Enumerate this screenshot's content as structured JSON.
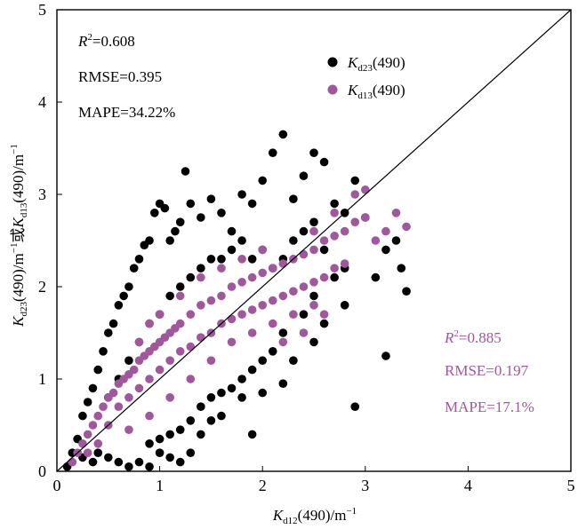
{
  "chart_data": {
    "type": "scatter",
    "title": "",
    "xlabel": "K_d12(490)/m^-1",
    "ylabel": "K_d23(490)/m^-1 或 K_d13(490)/m^-1",
    "xlim": [
      0,
      5
    ],
    "ylim": [
      0,
      5
    ],
    "x_ticks": [
      "0",
      "1",
      "2",
      "3",
      "4",
      "5"
    ],
    "y_ticks": [
      "0",
      "1",
      "2",
      "3",
      "4",
      "5"
    ],
    "grid": false,
    "one_to_one_line": true,
    "legend_position": "top-center",
    "series": [
      {
        "name": "K_d23(490)",
        "color": "#000000",
        "stats": {
          "r2": "R2=0.608",
          "rmse": "RMSE=0.395",
          "mape": "MAPE=34.22%"
        },
        "points": [
          [
            0.1,
            0.05
          ],
          [
            0.15,
            0.2
          ],
          [
            0.2,
            0.35
          ],
          [
            0.25,
            0.6
          ],
          [
            0.3,
            0.75
          ],
          [
            0.35,
            0.9
          ],
          [
            0.4,
            1.1
          ],
          [
            0.45,
            1.3
          ],
          [
            0.5,
            1.5
          ],
          [
            0.55,
            1.6
          ],
          [
            0.6,
            1.8
          ],
          [
            0.65,
            1.9
          ],
          [
            0.7,
            2.0
          ],
          [
            0.75,
            2.2
          ],
          [
            0.8,
            2.3
          ],
          [
            0.85,
            2.45
          ],
          [
            0.9,
            2.5
          ],
          [
            0.95,
            2.8
          ],
          [
            1.0,
            2.9
          ],
          [
            1.05,
            2.85
          ],
          [
            1.1,
            2.5
          ],
          [
            1.15,
            2.6
          ],
          [
            1.2,
            2.7
          ],
          [
            1.25,
            3.25
          ],
          [
            1.3,
            2.9
          ],
          [
            1.4,
            2.75
          ],
          [
            1.5,
            2.95
          ],
          [
            1.6,
            2.8
          ],
          [
            1.7,
            2.6
          ],
          [
            1.8,
            3.0
          ],
          [
            1.9,
            2.9
          ],
          [
            2.0,
            3.15
          ],
          [
            2.1,
            3.45
          ],
          [
            2.2,
            3.65
          ],
          [
            2.3,
            2.95
          ],
          [
            2.4,
            3.2
          ],
          [
            2.5,
            3.45
          ],
          [
            2.6,
            3.35
          ],
          [
            2.7,
            2.9
          ],
          [
            2.8,
            2.8
          ],
          [
            2.9,
            3.15
          ],
          [
            3.0,
            2.75
          ],
          [
            3.1,
            2.1
          ],
          [
            3.2,
            2.4
          ],
          [
            3.3,
            2.5
          ],
          [
            3.4,
            1.95
          ],
          [
            3.35,
            2.2
          ],
          [
            3.2,
            1.25
          ],
          [
            2.9,
            0.7
          ],
          [
            2.8,
            1.8
          ],
          [
            2.6,
            1.6
          ],
          [
            2.5,
            1.4
          ],
          [
            2.3,
            1.2
          ],
          [
            2.2,
            0.95
          ],
          [
            2.0,
            0.85
          ],
          [
            1.9,
            0.4
          ],
          [
            1.8,
            0.8
          ],
          [
            1.6,
            0.6
          ],
          [
            1.5,
            0.55
          ],
          [
            1.4,
            0.4
          ],
          [
            1.3,
            0.2
          ],
          [
            1.2,
            0.1
          ],
          [
            1.1,
            0.15
          ],
          [
            1.0,
            0.2
          ],
          [
            0.9,
            0.05
          ],
          [
            0.8,
            0.1
          ],
          [
            0.7,
            0.05
          ],
          [
            0.6,
            0.1
          ],
          [
            0.5,
            0.15
          ],
          [
            0.4,
            0.2
          ],
          [
            0.35,
            0.1
          ],
          [
            0.25,
            0.15
          ],
          [
            0.5,
            0.8
          ],
          [
            0.6,
            1.0
          ],
          [
            0.7,
            1.2
          ],
          [
            0.8,
            1.4
          ],
          [
            0.9,
            1.6
          ],
          [
            1.0,
            1.7
          ],
          [
            1.1,
            1.9
          ],
          [
            1.2,
            2.0
          ],
          [
            1.3,
            2.1
          ],
          [
            1.4,
            2.2
          ],
          [
            1.5,
            2.3
          ],
          [
            1.6,
            2.3
          ],
          [
            1.7,
            2.4
          ],
          [
            1.8,
            2.5
          ],
          [
            1.9,
            2.3
          ],
          [
            2.0,
            2.4
          ],
          [
            2.1,
            2.2
          ],
          [
            2.2,
            2.3
          ],
          [
            2.3,
            2.5
          ],
          [
            2.4,
            2.6
          ],
          [
            2.5,
            2.7
          ],
          [
            2.6,
            2.4
          ],
          [
            2.7,
            2.1
          ],
          [
            2.8,
            2.2
          ],
          [
            2.5,
            1.9
          ],
          [
            2.4,
            1.7
          ],
          [
            2.2,
            1.5
          ],
          [
            2.1,
            1.3
          ],
          [
            2.0,
            1.2
          ],
          [
            1.9,
            1.1
          ],
          [
            1.8,
            1.0
          ],
          [
            1.7,
            0.9
          ],
          [
            1.6,
            0.85
          ],
          [
            1.5,
            0.8
          ],
          [
            1.4,
            0.7
          ],
          [
            1.3,
            0.55
          ],
          [
            1.2,
            0.45
          ],
          [
            1.1,
            0.4
          ],
          [
            1.0,
            0.35
          ],
          [
            0.9,
            0.3
          ]
        ]
      },
      {
        "name": "K_d13(490)",
        "color": "#a0579c",
        "stats": {
          "r2": "R2=0.885",
          "rmse": "RMSE=0.197",
          "mape": "MAPE=17.1%"
        },
        "points": [
          [
            0.15,
            0.1
          ],
          [
            0.2,
            0.2
          ],
          [
            0.25,
            0.3
          ],
          [
            0.3,
            0.4
          ],
          [
            0.35,
            0.5
          ],
          [
            0.4,
            0.6
          ],
          [
            0.45,
            0.7
          ],
          [
            0.5,
            0.8
          ],
          [
            0.55,
            0.85
          ],
          [
            0.6,
            0.95
          ],
          [
            0.65,
            1.0
          ],
          [
            0.7,
            1.05
          ],
          [
            0.75,
            1.1
          ],
          [
            0.8,
            1.2
          ],
          [
            0.85,
            1.25
          ],
          [
            0.9,
            1.3
          ],
          [
            0.95,
            1.35
          ],
          [
            1.0,
            1.4
          ],
          [
            1.05,
            1.45
          ],
          [
            1.1,
            1.5
          ],
          [
            1.15,
            1.55
          ],
          [
            1.2,
            1.6
          ],
          [
            1.3,
            1.7
          ],
          [
            1.4,
            1.8
          ],
          [
            1.5,
            1.85
          ],
          [
            1.6,
            1.9
          ],
          [
            1.7,
            2.0
          ],
          [
            1.8,
            2.05
          ],
          [
            1.9,
            2.1
          ],
          [
            2.0,
            2.15
          ],
          [
            2.1,
            2.2
          ],
          [
            2.2,
            2.25
          ],
          [
            2.3,
            2.3
          ],
          [
            2.4,
            2.35
          ],
          [
            2.5,
            2.4
          ],
          [
            2.6,
            2.5
          ],
          [
            2.7,
            2.55
          ],
          [
            2.8,
            2.6
          ],
          [
            2.9,
            2.7
          ],
          [
            3.0,
            2.75
          ],
          [
            3.1,
            2.5
          ],
          [
            3.2,
            2.6
          ],
          [
            3.3,
            2.8
          ],
          [
            3.4,
            2.65
          ],
          [
            2.9,
            3.0
          ],
          [
            3.0,
            3.05
          ],
          [
            2.7,
            2.8
          ],
          [
            2.5,
            2.6
          ],
          [
            0.5,
            0.5
          ],
          [
            0.6,
            0.7
          ],
          [
            0.7,
            0.8
          ],
          [
            0.8,
            0.9
          ],
          [
            0.9,
            1.0
          ],
          [
            1.0,
            1.1
          ],
          [
            1.1,
            1.2
          ],
          [
            1.2,
            1.3
          ],
          [
            1.3,
            1.35
          ],
          [
            1.4,
            1.45
          ],
          [
            1.5,
            1.5
          ],
          [
            1.6,
            1.6
          ],
          [
            1.7,
            1.65
          ],
          [
            1.8,
            1.7
          ],
          [
            1.9,
            1.75
          ],
          [
            2.0,
            1.8
          ],
          [
            2.1,
            1.85
          ],
          [
            2.2,
            1.9
          ],
          [
            2.3,
            1.95
          ],
          [
            2.4,
            2.0
          ],
          [
            2.5,
            2.05
          ],
          [
            2.6,
            2.1
          ],
          [
            2.7,
            2.2
          ],
          [
            2.8,
            2.25
          ],
          [
            1.2,
            1.9
          ],
          [
            1.4,
            2.1
          ],
          [
            1.6,
            2.2
          ],
          [
            1.8,
            2.3
          ],
          [
            2.0,
            2.4
          ],
          [
            0.9,
            1.6
          ],
          [
            1.0,
            1.7
          ],
          [
            0.8,
            1.4
          ],
          [
            1.5,
            1.2
          ],
          [
            1.7,
            1.4
          ],
          [
            1.9,
            1.5
          ],
          [
            2.1,
            1.6
          ],
          [
            2.3,
            1.7
          ],
          [
            2.5,
            1.8
          ],
          [
            1.3,
            1.0
          ],
          [
            1.1,
            0.8
          ],
          [
            0.9,
            0.6
          ],
          [
            0.7,
            0.45
          ],
          [
            0.4,
            0.3
          ],
          [
            0.3,
            0.2
          ],
          [
            2.2,
            1.4
          ],
          [
            2.4,
            1.5
          ],
          [
            2.6,
            1.7
          ]
        ]
      }
    ]
  }
}
